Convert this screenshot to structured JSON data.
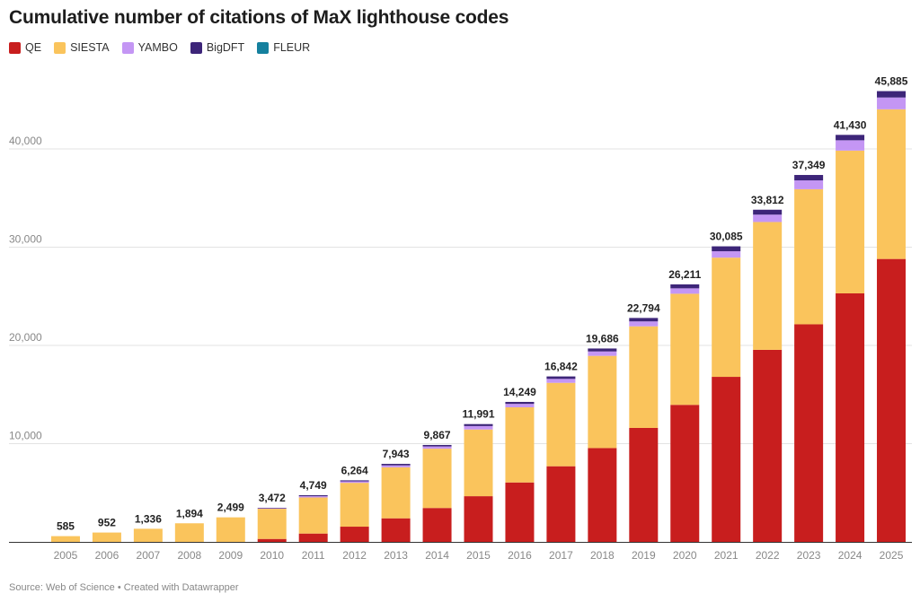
{
  "title": "Cumulative number of citations of MaX lighthouse codes",
  "footer": "Source: Web of Science • Created with Datawrapper",
  "legend": [
    {
      "name": "QE",
      "color": "#c81e1e"
    },
    {
      "name": "SIESTA",
      "color": "#fac45c"
    },
    {
      "name": "YAMBO",
      "color": "#c496f4"
    },
    {
      "name": "BigDFT",
      "color": "#3d2579"
    },
    {
      "name": "FLEUR",
      "color": "#15809e"
    }
  ],
  "chart_data": {
    "type": "bar",
    "stacked": true,
    "title": "Cumulative number of citations of MaX lighthouse codes",
    "xlabel": "",
    "ylabel": "",
    "ylim": [
      0,
      47000
    ],
    "yticks": [
      10000,
      20000,
      30000,
      40000
    ],
    "ytick_labels": [
      "10,000",
      "20,000",
      "30,000",
      "40,000"
    ],
    "grid": true,
    "legend_position": "top-left",
    "categories": [
      "2005",
      "2006",
      "2007",
      "2008",
      "2009",
      "2010",
      "2011",
      "2012",
      "2013",
      "2014",
      "2015",
      "2016",
      "2017",
      "2018",
      "2019",
      "2020",
      "2021",
      "2022",
      "2023",
      "2024",
      "2025"
    ],
    "series": [
      {
        "name": "QE",
        "color": "#c81e1e",
        "values": [
          0,
          0,
          0,
          0,
          0,
          300,
          850,
          1550,
          2400,
          3450,
          4650,
          6050,
          7700,
          9550,
          11600,
          13950,
          16800,
          19550,
          22150,
          25300,
          28800
        ]
      },
      {
        "name": "SIESTA",
        "color": "#fac45c",
        "values": [
          585,
          952,
          1336,
          1894,
          2499,
          3072,
          3669,
          4464,
          5193,
          6037,
          6791,
          7649,
          8492,
          9386,
          10344,
          11311,
          12135,
          13012,
          13749,
          14530,
          15235
        ]
      },
      {
        "name": "YAMBO",
        "color": "#c496f4",
        "values": [
          0,
          0,
          0,
          0,
          0,
          50,
          130,
          150,
          200,
          230,
          350,
          350,
          400,
          450,
          500,
          550,
          650,
          750,
          900,
          1050,
          1200
        ]
      },
      {
        "name": "BigDFT",
        "color": "#3d2579",
        "values": [
          0,
          0,
          0,
          0,
          0,
          50,
          100,
          100,
          150,
          150,
          200,
          200,
          250,
          300,
          350,
          400,
          500,
          500,
          550,
          550,
          650
        ]
      },
      {
        "name": "FLEUR",
        "color": "#15809e",
        "values": [
          0,
          0,
          0,
          0,
          0,
          0,
          0,
          0,
          0,
          0,
          0,
          0,
          0,
          0,
          0,
          0,
          0,
          0,
          0,
          0,
          0
        ]
      }
    ],
    "totals": [
      585,
      952,
      1336,
      1894,
      2499,
      3472,
      4749,
      6264,
      7943,
      9867,
      11991,
      14249,
      16842,
      19686,
      22794,
      26211,
      30085,
      33812,
      37349,
      41430,
      45885
    ],
    "total_labels": [
      "585",
      "952",
      "1,336",
      "1,894",
      "2,499",
      "3,472",
      "4,749",
      "6,264",
      "7,943",
      "9,867",
      "11,991",
      "14,249",
      "16,842",
      "19,686",
      "22,794",
      "26,211",
      "30,085",
      "33,812",
      "37,349",
      "41,430",
      "45,885"
    ]
  }
}
